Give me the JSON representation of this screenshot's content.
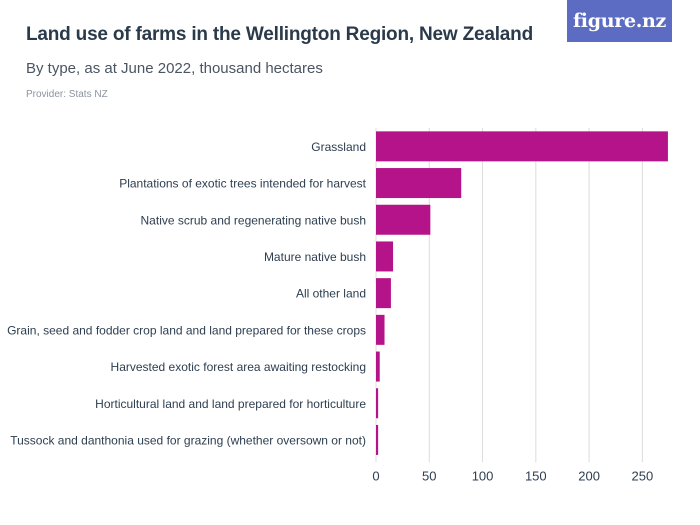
{
  "header": {
    "title": "Land use of farms in the Wellington Region, New Zealand",
    "subtitle": "By type, as at June 2022, thousand hectares",
    "provider": "Provider: Stats NZ",
    "logo_text": "figure.nz"
  },
  "colors": {
    "bar": "#b5138a",
    "grid": "#dcdcdc",
    "logo_bg": "#5b6cc2",
    "text": "#2d3e50"
  },
  "chart_data": {
    "type": "bar",
    "orientation": "horizontal",
    "categories": [
      "Grassland",
      "Plantations of exotic trees intended for harvest",
      "Native scrub and regenerating native bush",
      "Mature native bush",
      "All other land",
      "Grain, seed and fodder crop land and land prepared for these crops",
      "Harvested exotic forest area awaiting restocking",
      "Horticultural land and land prepared for horticulture",
      "Tussock and danthonia used for grazing (whether oversown or not)"
    ],
    "values": [
      274,
      80,
      51,
      16,
      14,
      8,
      3.5,
      2,
      2
    ],
    "xlim": [
      0,
      275
    ],
    "xticks": [
      0,
      50,
      100,
      150,
      200,
      250
    ],
    "grid": true,
    "legend": "none"
  }
}
